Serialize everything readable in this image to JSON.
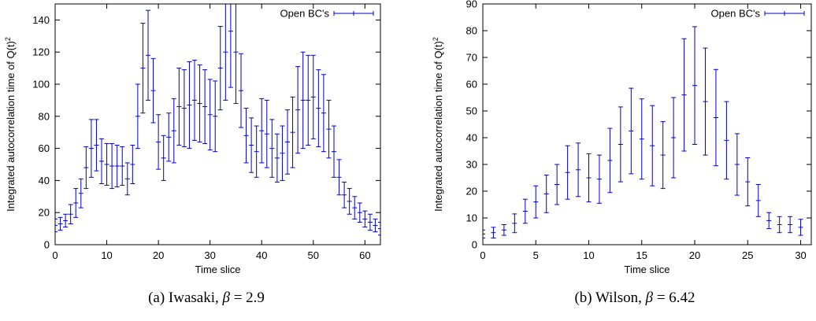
{
  "chart_data": [
    {
      "type": "scatter",
      "subtype": "errorbar",
      "caption_prefix": "(a) Iwasaki, ",
      "caption_symbol": "β",
      "caption_suffix": " = 2.9",
      "xlabel": "Time slice",
      "ylabel": "Integrated autocorrelation time of Q(t)",
      "ylabel_sup": "2",
      "xlim": [
        0,
        63
      ],
      "ylim": [
        0,
        150
      ],
      "xticks": [
        0,
        10,
        20,
        30,
        40,
        50,
        60
      ],
      "yticks": [
        0,
        20,
        40,
        60,
        80,
        100,
        120,
        140
      ],
      "legend": "top-right",
      "series": [
        {
          "name": "Open BC's",
          "color": "#0000cc",
          "x": [
            0,
            1,
            2,
            3,
            4,
            5,
            6,
            7,
            8,
            9,
            10,
            11,
            12,
            13,
            14,
            15,
            16,
            17,
            18,
            19,
            20,
            21,
            22,
            23,
            24,
            25,
            26,
            27,
            28,
            29,
            30,
            31,
            32,
            33,
            34,
            35,
            36,
            37,
            38,
            39,
            40,
            41,
            42,
            43,
            44,
            45,
            46,
            47,
            48,
            49,
            50,
            51,
            52,
            53,
            54,
            55,
            56,
            57,
            58,
            59,
            60,
            61,
            62,
            63
          ],
          "y": [
            12,
            13,
            15,
            19,
            26,
            32,
            48,
            60,
            62,
            52,
            50,
            49,
            49,
            49,
            41,
            50,
            80,
            110,
            118,
            96,
            64,
            54,
            67,
            71,
            86,
            85,
            87,
            90,
            88,
            86,
            81,
            80,
            110,
            120,
            133,
            120,
            96,
            68,
            62,
            58,
            71,
            69,
            60,
            54,
            57,
            64,
            70,
            84,
            90,
            90,
            92,
            85,
            82,
            72,
            58,
            42,
            31,
            27,
            23,
            20,
            16,
            14,
            12,
            10
          ],
          "err": [
            4,
            4,
            4,
            6,
            9,
            9,
            13,
            18,
            16,
            14,
            13,
            14,
            13,
            12,
            10,
            12,
            20,
            28,
            28,
            20,
            17,
            14,
            15,
            20,
            24,
            24,
            27,
            25,
            24,
            23,
            22,
            22,
            26,
            30,
            35,
            32,
            23,
            17,
            17,
            16,
            20,
            21,
            18,
            15,
            17,
            20,
            22,
            27,
            30,
            28,
            26,
            24,
            24,
            18,
            16,
            11,
            8,
            8,
            7,
            6,
            5,
            5,
            4,
            4
          ]
        }
      ]
    },
    {
      "type": "scatter",
      "subtype": "errorbar",
      "caption_prefix": "(b) Wilson, ",
      "caption_symbol": "β",
      "caption_suffix": " = 6.42",
      "xlabel": "Time slice",
      "ylabel": "Integrated autocorrelation time of Q(t)",
      "ylabel_sup": "2",
      "xlim": [
        0,
        31
      ],
      "ylim": [
        0,
        90
      ],
      "xticks": [
        0,
        5,
        10,
        15,
        20,
        25,
        30
      ],
      "yticks": [
        0,
        10,
        20,
        30,
        40,
        50,
        60,
        70,
        80,
        90
      ],
      "legend": "top-right",
      "series": [
        {
          "name": "Open BC's",
          "color": "#0000cc",
          "x": [
            0,
            1,
            2,
            3,
            4,
            5,
            6,
            7,
            8,
            9,
            10,
            11,
            12,
            13,
            14,
            15,
            16,
            17,
            18,
            19,
            20,
            21,
            22,
            23,
            24,
            25,
            26,
            27,
            28,
            29,
            30
          ],
          "y": [
            4,
            4.5,
            5.5,
            8,
            12.5,
            16,
            19,
            22.5,
            27,
            28,
            25,
            24.5,
            31.5,
            37.5,
            42.5,
            39.5,
            37,
            33.5,
            40,
            56,
            59.5,
            53.5,
            47.5,
            39,
            30,
            23.5,
            16.5,
            9,
            7.5,
            7.5,
            6.5
          ],
          "err": [
            1.5,
            2,
            2,
            3.5,
            4.5,
            6,
            7,
            7.5,
            10,
            10,
            9,
            9,
            12,
            14,
            16,
            15,
            15,
            12.5,
            15,
            21,
            22,
            20,
            18,
            14.5,
            11.5,
            9,
            6,
            3,
            3,
            3,
            3
          ]
        }
      ]
    }
  ]
}
